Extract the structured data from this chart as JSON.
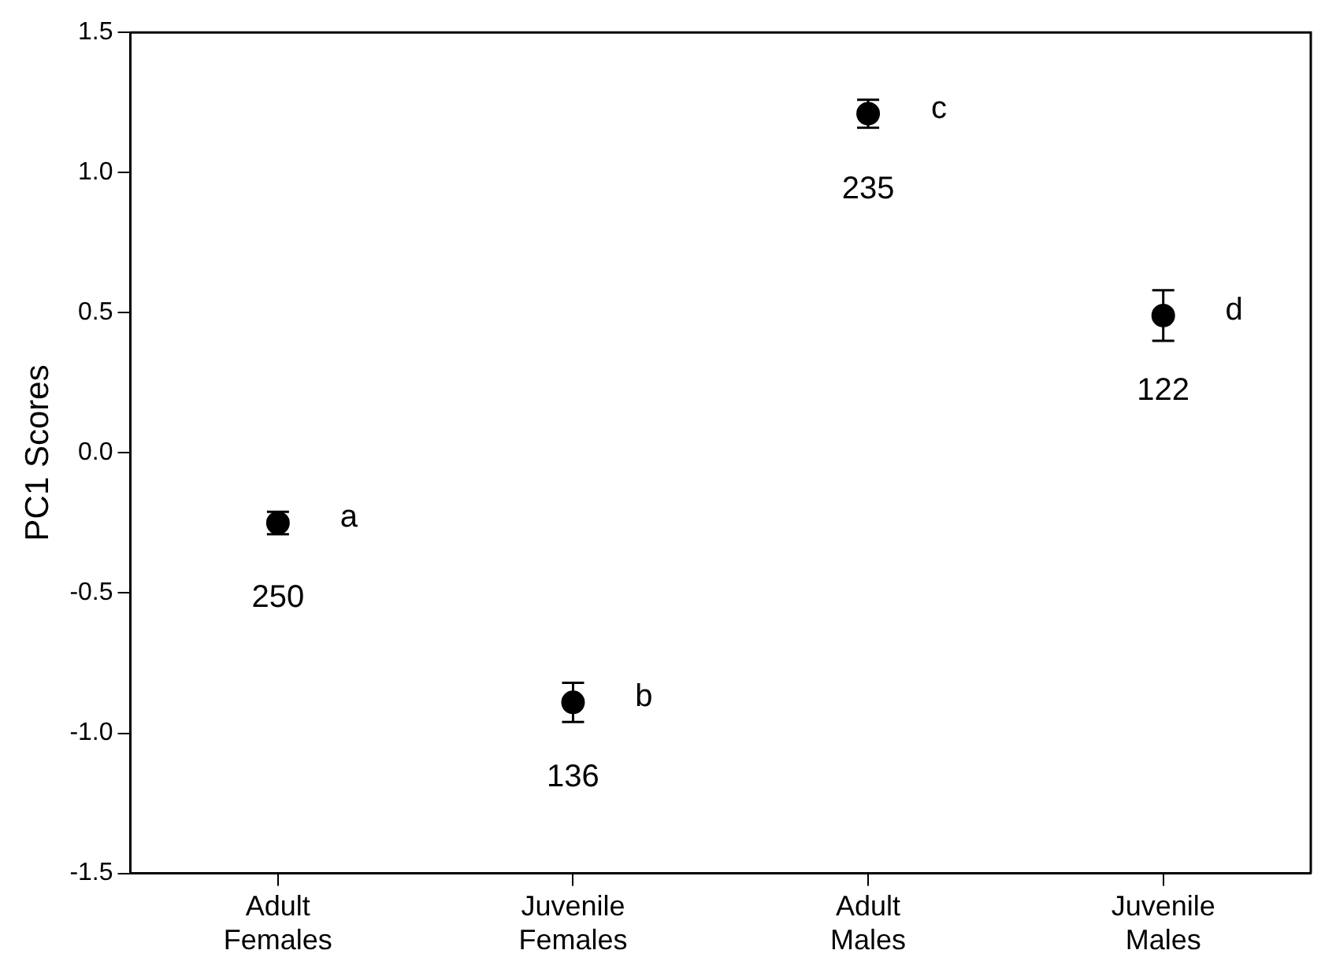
{
  "chart_data": {
    "type": "scatter",
    "ylabel": "PC1 Scores",
    "categories": [
      "Adult Females",
      "Juvenile Females",
      "Adult Males",
      "Juvenile Males"
    ],
    "series": [
      {
        "color": "#000000",
        "values": [
          -0.25,
          -0.89,
          1.21,
          0.49
        ],
        "errors": [
          0.04,
          0.07,
          0.05,
          0.09
        ]
      }
    ],
    "ylim": [
      -1.5,
      1.5
    ],
    "yticks": [
      {
        "value": -1.5,
        "label": "-1.5"
      },
      {
        "value": -1,
        "label": "-1.0"
      },
      {
        "value": -0.5,
        "label": "-0.5"
      },
      {
        "value": 0,
        "label": "0.0"
      },
      {
        "value": 0.5,
        "label": "0.5"
      },
      {
        "value": 1,
        "label": "1.0"
      },
      {
        "value": 1.5,
        "label": "1.5"
      }
    ],
    "marker": "circle",
    "grid": false,
    "legend": false,
    "annotations": [
      {
        "text": "a",
        "x": "Adult Females",
        "y": -0.25
      },
      {
        "text": "b",
        "x": "Juvenile Females",
        "y": -0.89
      },
      {
        "text": "c",
        "x": "Adult Males",
        "y": 1.21
      },
      {
        "text": "d",
        "x": "Juvenile Males",
        "y": 0.49
      },
      "250",
      "136",
      "235",
      "122"
    ]
  }
}
